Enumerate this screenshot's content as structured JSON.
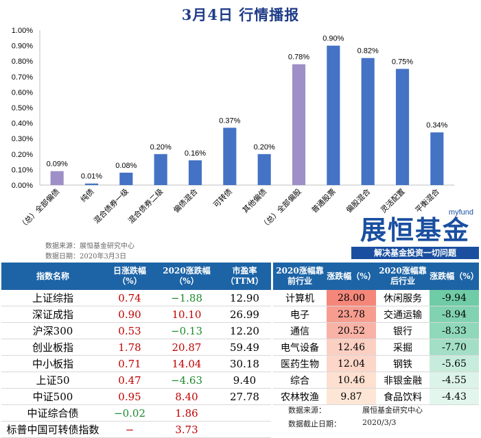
{
  "title": "3月4日  行情播报",
  "source_text": "数据来源：展恒基金研究中心",
  "date_text": "数据日期：2020年3月3日",
  "logo": {
    "small": "myfund",
    "main": "展恒基金",
    "slogan": "解决基金投资一切问题"
  },
  "colors": {
    "blue_bar": "#4472c4",
    "purple_bar": "#9e8fc6",
    "header_bg": "#1d64a6"
  },
  "chart_data": {
    "type": "bar",
    "categories": [
      "（总）全部偏债",
      "纯债",
      "混合债券一级",
      "混合债券二级",
      "偏债混合",
      "可转债",
      "其他偏债",
      "（总）全部偏股",
      "普通股票",
      "偏股混合",
      "灵活配置",
      "平衡混合"
    ],
    "values": [
      0.09,
      0.01,
      0.08,
      0.2,
      0.16,
      0.37,
      0.2,
      0.78,
      0.9,
      0.82,
      0.75,
      0.34
    ],
    "labels": [
      "0.09%",
      "0.01%",
      "0.08%",
      "0.20%",
      "0.16%",
      "0.37%",
      "0.20%",
      "0.78%",
      "0.90%",
      "0.82%",
      "0.75%",
      "0.34%"
    ],
    "highlight": [
      true,
      false,
      false,
      false,
      false,
      false,
      false,
      true,
      false,
      false,
      false,
      false
    ],
    "yticks": [
      "0.00%",
      "0.10%",
      "0.20%",
      "0.30%",
      "0.40%",
      "0.50%",
      "0.60%",
      "0.70%",
      "0.80%",
      "0.90%",
      "1.00%"
    ],
    "ylim": [
      0,
      1.0
    ],
    "grid": false
  },
  "index_table": {
    "headers": [
      "指数名称",
      "日涨跌幅（%）",
      "2020涨跌幅（%）",
      "市盈率（TTM）"
    ],
    "rows": [
      {
        "name": "上证综指",
        "day": "0.74",
        "ytd": "−1.88",
        "pe": "12.90",
        "day_dir": "up",
        "ytd_dir": "dn"
      },
      {
        "name": "深证成指",
        "day": "0.90",
        "ytd": "10.10",
        "pe": "26.99",
        "day_dir": "up",
        "ytd_dir": "up"
      },
      {
        "name": "沪深300",
        "day": "0.53",
        "ytd": "−0.13",
        "pe": "12.20",
        "day_dir": "up",
        "ytd_dir": "dn"
      },
      {
        "name": "创业板指",
        "day": "1.78",
        "ytd": "20.87",
        "pe": "59.49",
        "day_dir": "up",
        "ytd_dir": "up"
      },
      {
        "name": "中小板指",
        "day": "0.71",
        "ytd": "14.04",
        "pe": "30.18",
        "day_dir": "up",
        "ytd_dir": "up"
      },
      {
        "name": "上证50",
        "day": "0.47",
        "ytd": "−4.63",
        "pe": "9.40",
        "day_dir": "up",
        "ytd_dir": "dn"
      },
      {
        "name": "中证500",
        "day": "0.95",
        "ytd": "8.40",
        "pe": "27.78",
        "day_dir": "up",
        "ytd_dir": "up"
      },
      {
        "name": "中证综合债",
        "day": "−0.02",
        "ytd": "1.86",
        "pe": "",
        "day_dir": "dn",
        "ytd_dir": "up"
      },
      {
        "name": "标普中国可转债指数",
        "day": "−",
        "ytd": "3.73",
        "pe": "",
        "day_dir": "up",
        "ytd_dir": "up"
      }
    ]
  },
  "industry_table": {
    "headers": [
      "2020涨幅靠前行业",
      "涨跌幅（%）",
      "2020涨幅靠后行业",
      "涨跌幅（%）"
    ],
    "rows": [
      {
        "top": "计算机",
        "top_val": "28.00",
        "top_color": "#f4877a",
        "bot": "休闲服务",
        "bot_val": "-9.94",
        "bot_color": "#6fcca6"
      },
      {
        "top": "电子",
        "top_val": "23.78",
        "top_color": "#f69d90",
        "bot": "交通运输",
        "bot_val": "-8.94",
        "bot_color": "#80d2b0"
      },
      {
        "top": "通信",
        "top_val": "20.52",
        "top_color": "#f8b2a6",
        "bot": "银行",
        "bot_val": "-8.33",
        "bot_color": "#8fd8ba"
      },
      {
        "top": "电气设备",
        "top_val": "12.46",
        "top_color": "#fbd0c2",
        "bot": "采掘",
        "bot_val": "-7.70",
        "bot_color": "#a3dfc6"
      },
      {
        "top": "医药生物",
        "top_val": "12.04",
        "top_color": "#fcd6c8",
        "bot": "钢铁",
        "bot_val": "-5.65",
        "bot_color": "#c7ecdc"
      },
      {
        "top": "综合",
        "top_val": "10.46",
        "top_color": "#fde0d0",
        "bot": "非银金融",
        "bot_val": "-4.55",
        "bot_color": "#dcf3ea"
      },
      {
        "top": "农林牧渔",
        "top_val": "9.87",
        "top_color": "#fde6d6",
        "bot": "食品饮料",
        "bot_val": "-4.43",
        "bot_color": "#e3f6ee"
      }
    ],
    "note_source_label": "数据来源：",
    "note_source": "展恒基金研究中心",
    "note_date_label": "数据截止日期：",
    "note_date": "2020/3/3"
  }
}
